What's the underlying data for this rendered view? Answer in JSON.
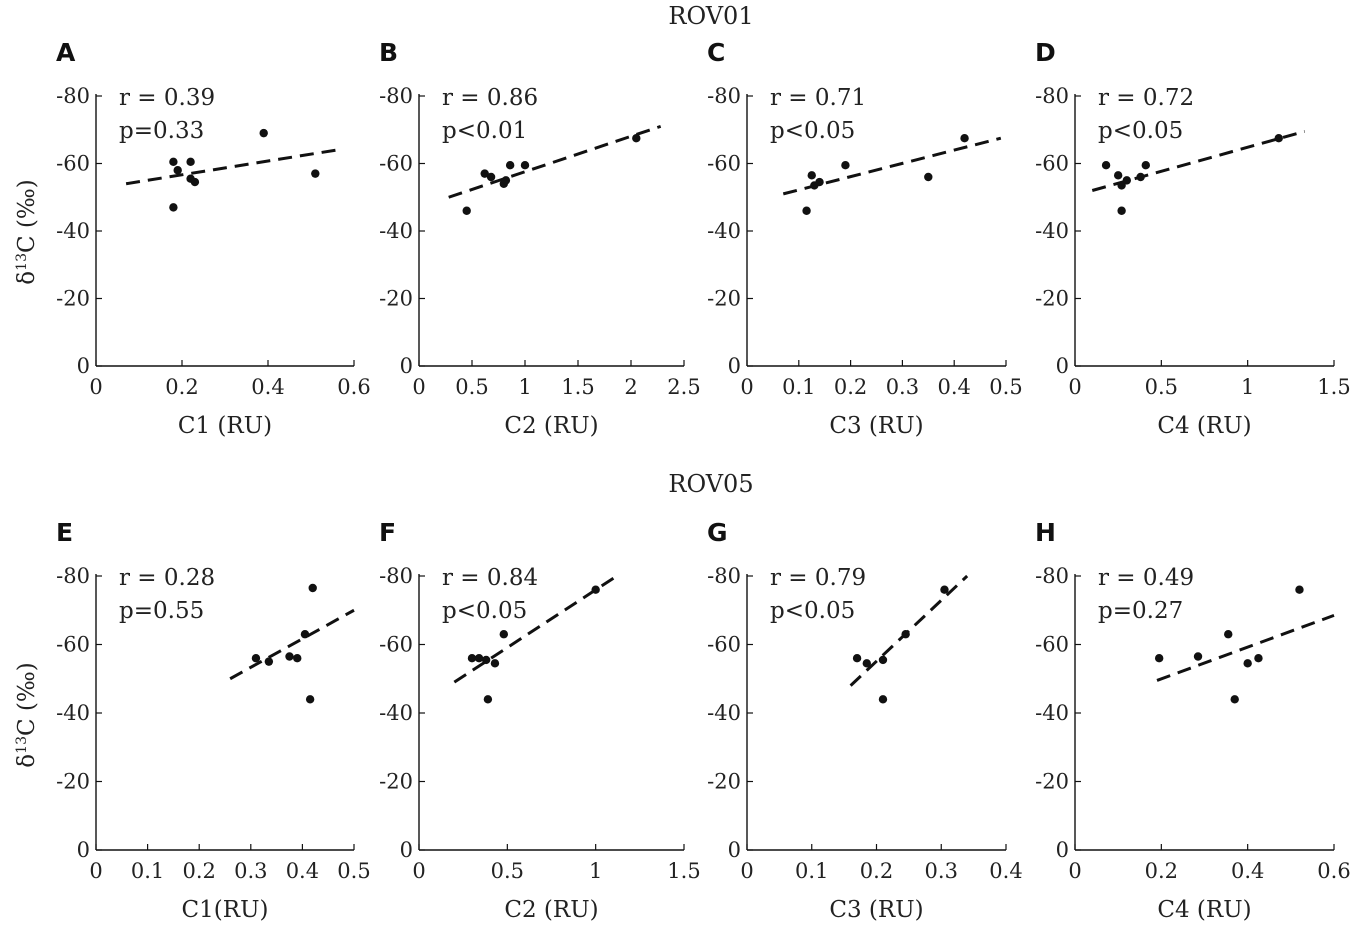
{
  "row_titles": [
    "ROV01",
    "ROV05"
  ],
  "ylabel_main": "δ",
  "ylabel_sup": "13",
  "ylabel_rest": "C (‰)",
  "chart_data": [
    {
      "type": "scatter",
      "panel": "A",
      "xlabel": "C1 (RU)",
      "xlim": [
        0,
        0.6
      ],
      "xticks": [
        0,
        0.2,
        0.4,
        0.6
      ],
      "xtick_labels": [
        "0",
        "0.2",
        "0.4",
        "0.6"
      ],
      "ylim": [
        0,
        -80
      ],
      "yticks": [
        0,
        -20,
        -40,
        -60,
        -80
      ],
      "ytick_labels": [
        "0",
        "-20",
        "-40",
        "-60",
        "-80"
      ],
      "r_text": "r = 0.39",
      "p_text": "p=0.33",
      "points": [
        [
          0.18,
          -60.5
        ],
        [
          0.19,
          -58
        ],
        [
          0.22,
          -60.5
        ],
        [
          0.22,
          -55.5
        ],
        [
          0.23,
          -54.5
        ],
        [
          0.18,
          -47
        ],
        [
          0.39,
          -69
        ],
        [
          0.51,
          -57
        ]
      ],
      "fit": [
        [
          0.07,
          -54
        ],
        [
          0.56,
          -64
        ]
      ]
    },
    {
      "type": "scatter",
      "panel": "B",
      "xlabel": "C2 (RU)",
      "xlim": [
        0,
        2.5
      ],
      "xticks": [
        0,
        0.5,
        1,
        1.5,
        2,
        2.5
      ],
      "xtick_labels": [
        "0",
        "0.5",
        "1",
        "1.5",
        "2",
        "2.5"
      ],
      "ylim": [
        0,
        -80
      ],
      "yticks": [
        0,
        -20,
        -40,
        -60,
        -80
      ],
      "ytick_labels": [
        "0",
        "-20",
        "-40",
        "-60",
        "-80"
      ],
      "r_text": "r = 0.86",
      "p_text": "p<0.01",
      "points": [
        [
          0.62,
          -57
        ],
        [
          0.68,
          -56
        ],
        [
          0.8,
          -54
        ],
        [
          0.82,
          -55
        ],
        [
          0.86,
          -59.5
        ],
        [
          1.0,
          -59.5
        ],
        [
          0.45,
          -46
        ],
        [
          2.05,
          -67.5
        ]
      ],
      "fit": [
        [
          0.28,
          -50
        ],
        [
          2.28,
          -71
        ]
      ]
    },
    {
      "type": "scatter",
      "panel": "C",
      "xlabel": "C3 (RU)",
      "xlim": [
        0,
        0.5
      ],
      "xticks": [
        0,
        0.1,
        0.2,
        0.3,
        0.4,
        0.5
      ],
      "xtick_labels": [
        "0",
        "0.1",
        "0.2",
        "0.3",
        "0.4",
        "0.5"
      ],
      "ylim": [
        0,
        -80
      ],
      "yticks": [
        0,
        -20,
        -40,
        -60,
        -80
      ],
      "ytick_labels": [
        "0",
        "-20",
        "-40",
        "-60",
        "-80"
      ],
      "r_text": "r = 0.71",
      "p_text": "p<0.05",
      "points": [
        [
          0.125,
          -56.5
        ],
        [
          0.13,
          -53.5
        ],
        [
          0.14,
          -54.5
        ],
        [
          0.19,
          -59.5
        ],
        [
          0.115,
          -46
        ],
        [
          0.35,
          -56
        ],
        [
          0.42,
          -67.5
        ]
      ],
      "fit": [
        [
          0.07,
          -51
        ],
        [
          0.49,
          -67.5
        ]
      ]
    },
    {
      "type": "scatter",
      "panel": "D",
      "xlabel": "C4 (RU)",
      "xlim": [
        0,
        1.5
      ],
      "xticks": [
        0,
        0.5,
        1,
        1.5
      ],
      "xtick_labels": [
        "0",
        "0.5",
        "1",
        "1.5"
      ],
      "ylim": [
        0,
        -80
      ],
      "yticks": [
        0,
        -20,
        -40,
        -60,
        -80
      ],
      "ytick_labels": [
        "0",
        "-20",
        "-40",
        "-60",
        "-80"
      ],
      "r_text": "r = 0.72",
      "p_text": "p<0.05",
      "points": [
        [
          0.18,
          -59.5
        ],
        [
          0.25,
          -56.5
        ],
        [
          0.27,
          -53.5
        ],
        [
          0.3,
          -55
        ],
        [
          0.38,
          -56
        ],
        [
          0.41,
          -59.5
        ],
        [
          0.27,
          -46
        ],
        [
          1.18,
          -67.5
        ]
      ],
      "fit": [
        [
          0.1,
          -52
        ],
        [
          1.33,
          -69.5
        ]
      ]
    },
    {
      "type": "scatter",
      "panel": "E",
      "xlabel": "C1(RU)",
      "xlim": [
        0,
        0.5
      ],
      "xticks": [
        0,
        0.1,
        0.2,
        0.3,
        0.4,
        0.5
      ],
      "xtick_labels": [
        "0",
        "0.1",
        "0.2",
        "0.3",
        "0.4",
        "0.5"
      ],
      "ylim": [
        0,
        -80
      ],
      "yticks": [
        0,
        -20,
        -40,
        -60,
        -80
      ],
      "ytick_labels": [
        "0",
        "-20",
        "-40",
        "-60",
        "-80"
      ],
      "r_text": "r = 0.28",
      "p_text": "p=0.55",
      "points": [
        [
          0.31,
          -56
        ],
        [
          0.335,
          -55
        ],
        [
          0.375,
          -56.5
        ],
        [
          0.39,
          -56
        ],
        [
          0.405,
          -63
        ],
        [
          0.42,
          -76.5
        ],
        [
          0.415,
          -44
        ]
      ],
      "fit": [
        [
          0.26,
          -50
        ],
        [
          0.5,
          -70
        ]
      ]
    },
    {
      "type": "scatter",
      "panel": "F",
      "xlabel": "C2 (RU)",
      "xlim": [
        0,
        1.5
      ],
      "xticks": [
        0,
        0.5,
        1,
        1.5
      ],
      "xtick_labels": [
        "0",
        "0.5",
        "1",
        "1.5"
      ],
      "ylim": [
        0,
        -80
      ],
      "yticks": [
        0,
        -20,
        -40,
        -60,
        -80
      ],
      "ytick_labels": [
        "0",
        "-20",
        "-40",
        "-60",
        "-80"
      ],
      "r_text": "r = 0.84",
      "p_text": "p<0.05",
      "points": [
        [
          0.3,
          -56
        ],
        [
          0.34,
          -56
        ],
        [
          0.38,
          -55.5
        ],
        [
          0.43,
          -54.5
        ],
        [
          0.48,
          -63
        ],
        [
          0.39,
          -44
        ],
        [
          1.0,
          -76
        ]
      ],
      "fit": [
        [
          0.2,
          -49
        ],
        [
          1.12,
          -80
        ]
      ]
    },
    {
      "type": "scatter",
      "panel": "G",
      "xlabel": "C3 (RU)",
      "xlim": [
        0,
        0.4
      ],
      "xticks": [
        0,
        0.1,
        0.2,
        0.3,
        0.4
      ],
      "xtick_labels": [
        "0",
        "0.1",
        "0.2",
        "0.3",
        "0.4"
      ],
      "ylim": [
        0,
        -80
      ],
      "yticks": [
        0,
        -20,
        -40,
        -60,
        -80
      ],
      "ytick_labels": [
        "0",
        "-20",
        "-40",
        "-60",
        "-80"
      ],
      "r_text": "r = 0.79",
      "p_text": "p<0.05",
      "points": [
        [
          0.17,
          -56
        ],
        [
          0.185,
          -54.5
        ],
        [
          0.21,
          -55.5
        ],
        [
          0.245,
          -63
        ],
        [
          0.305,
          -76
        ],
        [
          0.21,
          -44
        ]
      ],
      "fit": [
        [
          0.16,
          -48
        ],
        [
          0.34,
          -80
        ]
      ]
    },
    {
      "type": "scatter",
      "panel": "H",
      "xlabel": "C4 (RU)",
      "xlim": [
        0,
        0.6
      ],
      "xticks": [
        0,
        0.2,
        0.4,
        0.6
      ],
      "xtick_labels": [
        "0",
        "0.2",
        "0.4",
        "0.6"
      ],
      "ylim": [
        0,
        -80
      ],
      "yticks": [
        0,
        -20,
        -40,
        -60,
        -80
      ],
      "ytick_labels": [
        "0",
        "-20",
        "-40",
        "-60",
        "-80"
      ],
      "r_text": "r = 0.49",
      "p_text": "p=0.27",
      "points": [
        [
          0.195,
          -56
        ],
        [
          0.285,
          -56.5
        ],
        [
          0.355,
          -63
        ],
        [
          0.4,
          -54.5
        ],
        [
          0.425,
          -56
        ],
        [
          0.37,
          -44
        ],
        [
          0.52,
          -76
        ]
      ],
      "fit": [
        [
          0.19,
          -49.5
        ],
        [
          0.6,
          -68.5
        ]
      ]
    }
  ]
}
